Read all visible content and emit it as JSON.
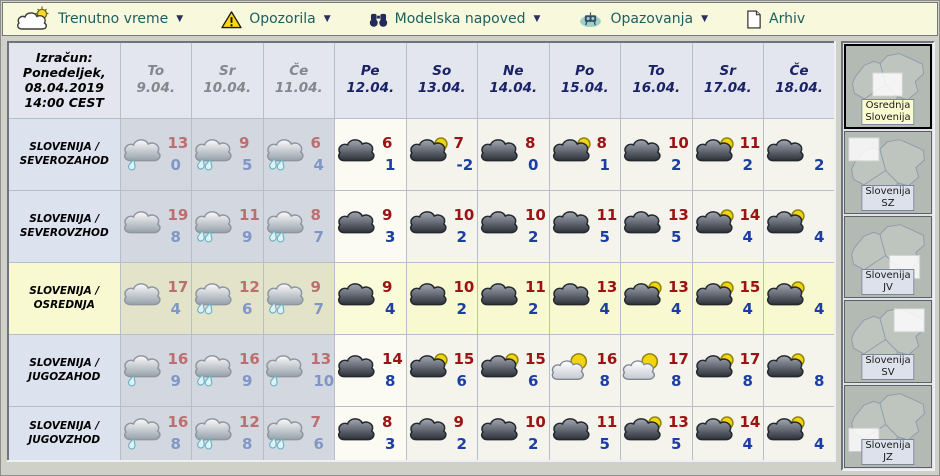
{
  "nav": {
    "caret": "▼",
    "items": [
      {
        "label": "Trenutno vreme",
        "icon": "cloud-sun-icon",
        "has_dropdown": true
      },
      {
        "label": "Opozorila",
        "icon": "warning-icon",
        "has_dropdown": true
      },
      {
        "label": "Modelska napoved",
        "icon": "binoculars-icon",
        "has_dropdown": true
      },
      {
        "label": "Opazovanja",
        "icon": "observation-icon",
        "has_dropdown": true
      },
      {
        "label": "Arhiv",
        "icon": "document-icon",
        "has_dropdown": false
      }
    ]
  },
  "forecast": {
    "run": {
      "line1": "Izračun:",
      "line2": "Ponedeljek,",
      "line3": "08.04.2019",
      "line4": "14:00 CEST"
    },
    "days": [
      {
        "abbr": "To",
        "date": "9.04.",
        "past": true
      },
      {
        "abbr": "Sr",
        "date": "10.04.",
        "past": true
      },
      {
        "abbr": "Če",
        "date": "11.04.",
        "past": true
      },
      {
        "abbr": "Pe",
        "date": "12.04.",
        "past": false
      },
      {
        "abbr": "So",
        "date": "13.04.",
        "past": false
      },
      {
        "abbr": "Ne",
        "date": "14.04.",
        "past": false
      },
      {
        "abbr": "Po",
        "date": "15.04.",
        "past": false
      },
      {
        "abbr": "To",
        "date": "16.04.",
        "past": false
      },
      {
        "abbr": "Sr",
        "date": "17.04.",
        "past": false
      },
      {
        "abbr": "Če",
        "date": "18.04.",
        "past": false
      }
    ],
    "regions": [
      {
        "name_line1": "SLOVENIJA /",
        "name_line2": "SEVEROZAHOD",
        "selected": false,
        "cells": [
          {
            "icon": "rain-cloud-1",
            "high": "13",
            "low": "0"
          },
          {
            "icon": "rain-cloud-2",
            "high": "9",
            "low": "5"
          },
          {
            "icon": "rain-cloud-2",
            "high": "6",
            "low": "4"
          },
          {
            "icon": "cloud-dark",
            "high": "6",
            "low": "1"
          },
          {
            "icon": "cloud-sun",
            "high": "7",
            "low": "-2"
          },
          {
            "icon": "cloud-dark",
            "high": "8",
            "low": "0"
          },
          {
            "icon": "cloud-sun",
            "high": "8",
            "low": "1"
          },
          {
            "icon": "cloud-dark",
            "high": "10",
            "low": "2"
          },
          {
            "icon": "cloud-sun",
            "high": "11",
            "low": "2"
          },
          {
            "icon": "cloud-dark",
            "high": "",
            "low": "2"
          }
        ]
      },
      {
        "name_line1": "SLOVENIJA /",
        "name_line2": "SEVEROVZHOD",
        "selected": false,
        "cells": [
          {
            "icon": "cloud-gray",
            "high": "19",
            "low": "8"
          },
          {
            "icon": "rain-cloud-2",
            "high": "11",
            "low": "9"
          },
          {
            "icon": "rain-cloud-2",
            "high": "8",
            "low": "7"
          },
          {
            "icon": "cloud-dark",
            "high": "9",
            "low": "3"
          },
          {
            "icon": "cloud-dark",
            "high": "10",
            "low": "2"
          },
          {
            "icon": "cloud-dark",
            "high": "10",
            "low": "2"
          },
          {
            "icon": "cloud-dark",
            "high": "11",
            "low": "5"
          },
          {
            "icon": "cloud-dark",
            "high": "13",
            "low": "5"
          },
          {
            "icon": "cloud-sun",
            "high": "14",
            "low": "4"
          },
          {
            "icon": "cloud-sun",
            "high": "",
            "low": "4"
          }
        ]
      },
      {
        "name_line1": "SLOVENIJA /",
        "name_line2": "OSREDNJA",
        "selected": true,
        "cells": [
          {
            "icon": "cloud-gray",
            "high": "17",
            "low": "4"
          },
          {
            "icon": "rain-cloud-2",
            "high": "12",
            "low": "6"
          },
          {
            "icon": "rain-cloud-2",
            "high": "9",
            "low": "7"
          },
          {
            "icon": "cloud-dark",
            "high": "9",
            "low": "4"
          },
          {
            "icon": "cloud-dark",
            "high": "10",
            "low": "2"
          },
          {
            "icon": "cloud-dark",
            "high": "11",
            "low": "2"
          },
          {
            "icon": "cloud-dark",
            "high": "13",
            "low": "4"
          },
          {
            "icon": "cloud-sun",
            "high": "13",
            "low": "4"
          },
          {
            "icon": "cloud-sun",
            "high": "15",
            "low": "4"
          },
          {
            "icon": "cloud-sun",
            "high": "",
            "low": "4"
          }
        ]
      },
      {
        "name_line1": "SLOVENIJA /",
        "name_line2": "JUGOZAHOD",
        "selected": false,
        "cells": [
          {
            "icon": "rain-cloud-1",
            "high": "16",
            "low": "9"
          },
          {
            "icon": "rain-cloud-2",
            "high": "16",
            "low": "9"
          },
          {
            "icon": "rain-cloud-1",
            "high": "13",
            "low": "10"
          },
          {
            "icon": "cloud-dark",
            "high": "14",
            "low": "8"
          },
          {
            "icon": "cloud-sun",
            "high": "15",
            "low": "6"
          },
          {
            "icon": "cloud-sun",
            "high": "15",
            "low": "6"
          },
          {
            "icon": "sun-cloud",
            "high": "16",
            "low": "8"
          },
          {
            "icon": "sun-cloud",
            "high": "17",
            "low": "8"
          },
          {
            "icon": "cloud-sun",
            "high": "17",
            "low": "8"
          },
          {
            "icon": "cloud-sun",
            "high": "",
            "low": "8"
          }
        ]
      },
      {
        "name_line1": "SLOVENIJA /",
        "name_line2": "JUGOVZHOD",
        "selected": false,
        "cells": [
          {
            "icon": "rain-cloud-1",
            "high": "16",
            "low": "8"
          },
          {
            "icon": "rain-cloud-2",
            "high": "12",
            "low": "8"
          },
          {
            "icon": "rain-cloud-2",
            "high": "7",
            "low": "6"
          },
          {
            "icon": "cloud-dark",
            "high": "8",
            "low": "3"
          },
          {
            "icon": "cloud-dark",
            "high": "9",
            "low": "2"
          },
          {
            "icon": "cloud-dark",
            "high": "10",
            "low": "2"
          },
          {
            "icon": "cloud-dark",
            "high": "11",
            "low": "5"
          },
          {
            "icon": "cloud-sun",
            "high": "13",
            "low": "5"
          },
          {
            "icon": "cloud-sun",
            "high": "14",
            "low": "4"
          },
          {
            "icon": "cloud-sun",
            "high": "",
            "low": "4"
          }
        ]
      }
    ]
  },
  "sidebar": {
    "maps": [
      {
        "label": "Osrednja Slovenija",
        "selected": true,
        "highlight": "center"
      },
      {
        "label": "Slovenija SZ",
        "selected": false,
        "highlight": "northwest"
      },
      {
        "label": "Slovenija JV",
        "selected": false,
        "highlight": "southeast"
      },
      {
        "label": "Slovenija SV",
        "selected": false,
        "highlight": "northeast"
      },
      {
        "label": "Slovenija JZ",
        "selected": false,
        "highlight": "southwest"
      }
    ]
  },
  "colors": {
    "nav_bg": "#f7f8dc",
    "nav_text": "#1e5f5f",
    "high_temp": "#9b1313",
    "low_temp": "#1c3ea3",
    "high_temp_past": "#bb6f6f",
    "low_temp_past": "#8097c6",
    "selected_row": "#f8f9d0",
    "past_column": "#d3d7e0",
    "warning_yellow": "#ffd70a",
    "sun_yellow": "#f2d50c"
  }
}
